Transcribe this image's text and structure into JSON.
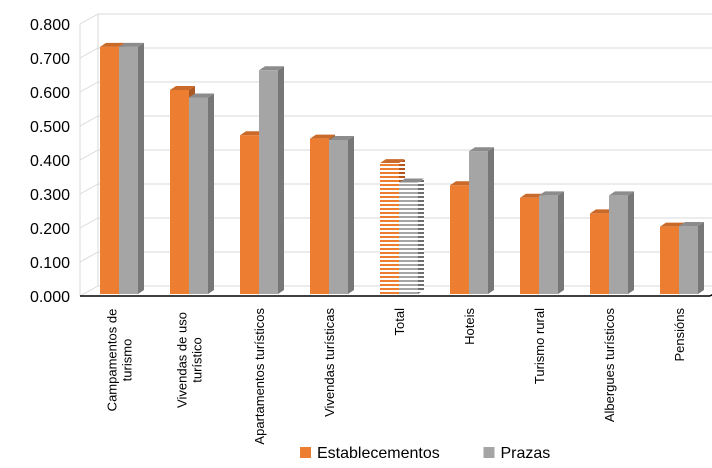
{
  "chart_data": {
    "type": "bar",
    "title": "",
    "xlabel": "",
    "ylabel": "",
    "ylim": [
      0,
      0.8
    ],
    "yticks": [
      "0.000",
      "0.100",
      "0.200",
      "0.300",
      "0.400",
      "0.500",
      "0.600",
      "0.700",
      "0.800"
    ],
    "categories": [
      [
        "Campamentos de",
        "turismo"
      ],
      [
        "Vivendas de uso",
        "turístico"
      ],
      [
        "Apartamentos turísticos"
      ],
      [
        "Vivendas turísticas"
      ],
      [
        "Total"
      ],
      [
        "Hoteis"
      ],
      [
        "Turismo rural"
      ],
      [
        "Albergues turísticos"
      ],
      [
        "Pensións"
      ]
    ],
    "series": [
      {
        "name": "Establecementos",
        "color": "#ED7D31",
        "values": [
          0.727,
          0.6,
          0.467,
          0.457,
          0.385,
          0.32,
          0.283,
          0.237,
          0.198
        ]
      },
      {
        "name": "Prazas",
        "color": "#A5A5A5",
        "values": [
          0.727,
          0.578,
          0.658,
          0.453,
          0.328,
          0.42,
          0.29,
          0.29,
          0.2
        ]
      }
    ],
    "highlight_category_index": 4,
    "grid": true,
    "legend": "bottom"
  }
}
